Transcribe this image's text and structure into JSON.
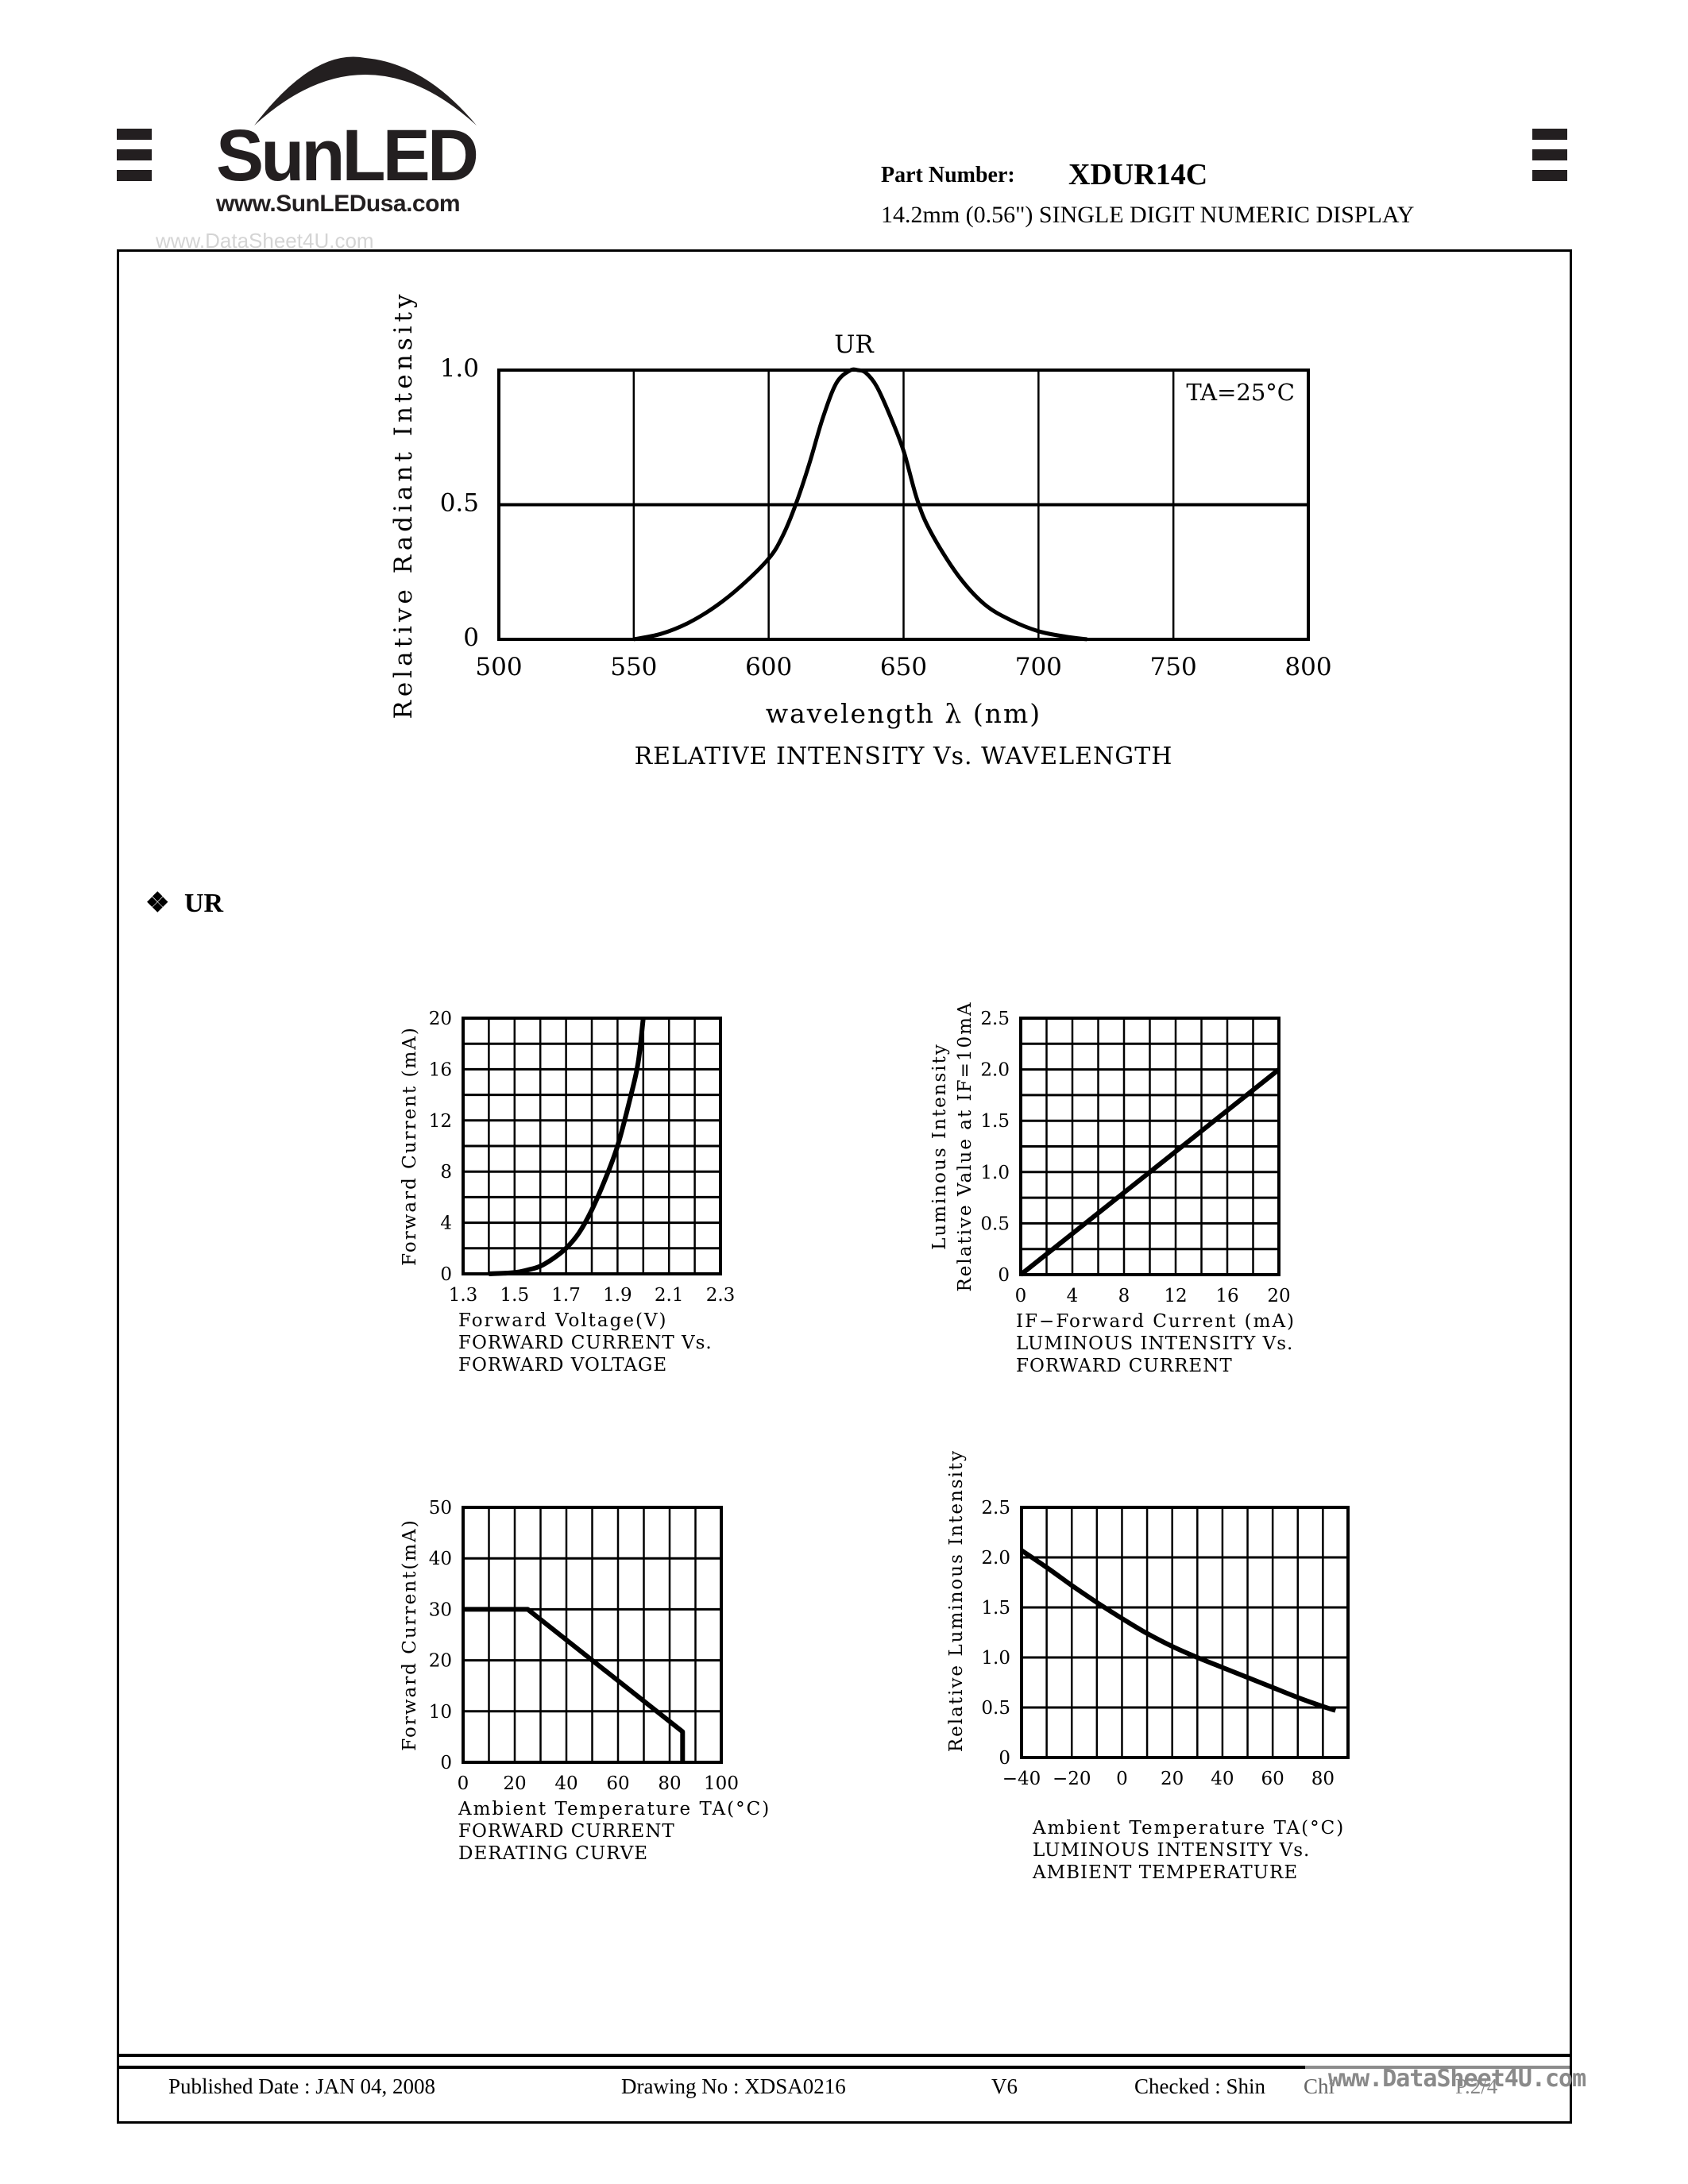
{
  "header": {
    "logo_text": "SunLED",
    "logo_url": "www.SunLEDusa.com",
    "watermark_top": "www.DataSheet4U.com",
    "part_number_label": "Part Number:",
    "part_number": "XDUR14C",
    "subtitle": "14.2mm (0.56\") SINGLE DIGIT NUMERIC DISPLAY"
  },
  "section": {
    "bullet": "❖",
    "label": "UR"
  },
  "footer": {
    "published": "Published Date : JAN  04, 2008",
    "drawing": "Drawing No : XDSA0216",
    "version": "V6",
    "checked": "Checked : Shin",
    "checked_suffix": "Chi",
    "page": "P.2/4",
    "watermark_bottom": "www.DataSheet4U.com"
  },
  "chart_data": [
    {
      "id": "spectrum",
      "type": "line",
      "title": "RELATIVE  INTENSITY  Vs.  WAVELENGTH",
      "series_label": "UR",
      "annotation": "TA=25°C",
      "xlabel": "wavelength λ  (nm)",
      "ylabel": "Relative  Radiant  Intensity",
      "xlim": [
        500,
        800
      ],
      "ylim": [
        0,
        1.0
      ],
      "xticks": [
        "500",
        "550",
        "600",
        "650",
        "700",
        "750",
        "800"
      ],
      "yticks": [
        "0",
        "0.5",
        "1.0"
      ],
      "grid": true,
      "x": [
        550,
        560,
        570,
        580,
        590,
        600,
        605,
        610,
        615,
        620,
        625,
        630,
        633,
        636,
        640,
        645,
        650,
        655,
        660,
        670,
        680,
        690,
        700,
        710,
        718
      ],
      "y": [
        0.0,
        0.02,
        0.06,
        0.12,
        0.2,
        0.3,
        0.38,
        0.5,
        0.65,
        0.82,
        0.95,
        0.998,
        1.0,
        0.99,
        0.94,
        0.83,
        0.7,
        0.52,
        0.4,
        0.24,
        0.13,
        0.07,
        0.03,
        0.01,
        0.0
      ]
    },
    {
      "id": "iv",
      "type": "line",
      "title": "FORWARD  CURRENT  Vs.\nFORWARD  VOLTAGE",
      "xlabel": "Forward  Voltage(V)",
      "ylabel": "Forward  Current  (mA)",
      "xlim": [
        1.3,
        2.3
      ],
      "ylim": [
        0,
        20
      ],
      "xticks": [
        "1.3",
        "1.5",
        "1.7",
        "1.9",
        "2.1",
        "2.3"
      ],
      "yticks": [
        "0",
        "4",
        "8",
        "12",
        "16",
        "20"
      ],
      "grid": true,
      "x": [
        1.4,
        1.5,
        1.55,
        1.6,
        1.65,
        1.7,
        1.75,
        1.8,
        1.85,
        1.9,
        1.95,
        1.98,
        2.0
      ],
      "y": [
        0.0,
        0.1,
        0.3,
        0.6,
        1.2,
        2.0,
        3.2,
        5.0,
        7.3,
        10.0,
        13.8,
        16.5,
        20.0
      ]
    },
    {
      "id": "li",
      "type": "line",
      "title": "LUMINOUS  INTENSITY  Vs.\nFORWARD  CURRENT",
      "xlabel": "IF−Forward  Current  (mA)",
      "ylabel": "Luminous  Intensity\nRelative  Value  at  IF=10mA",
      "xlim": [
        0,
        20
      ],
      "ylim": [
        0,
        2.5
      ],
      "xticks": [
        "0",
        "4",
        "8",
        "12",
        "16",
        "20"
      ],
      "yticks": [
        "0",
        "0.5",
        "1.0",
        "1.5",
        "2.0",
        "2.5"
      ],
      "grid": true,
      "x": [
        0,
        20
      ],
      "y": [
        0,
        2.0
      ]
    },
    {
      "id": "derating",
      "type": "line",
      "title": "FORWARD  CURRENT\nDERATING  CURVE",
      "xlabel": "Ambient  Temperature  TA(°C)",
      "ylabel": "Forward  Current(mA)",
      "xlim": [
        0,
        100
      ],
      "ylim": [
        0,
        50
      ],
      "xticks": [
        "0",
        "20",
        "40",
        "60",
        "80",
        "100"
      ],
      "yticks": [
        "0",
        "10",
        "20",
        "30",
        "40",
        "50"
      ],
      "grid": true,
      "x": [
        0,
        25,
        85,
        85
      ],
      "y": [
        30,
        30,
        6,
        0
      ]
    },
    {
      "id": "lt",
      "type": "line",
      "title": "LUMINOUS  INTENSITY  Vs.\nAMBIENT  TEMPERATURE",
      "xlabel": "Ambient  Temperature  TA(°C)",
      "ylabel": "Relative  Luminous  Intensity",
      "xlim": [
        -40,
        90
      ],
      "ylim": [
        0,
        2.5
      ],
      "xticks": [
        "−40",
        "−20",
        "0",
        "20",
        "40",
        "60",
        "80"
      ],
      "yticks": [
        "0",
        "0.5",
        "1.0",
        "1.5",
        "2.0",
        "2.5"
      ],
      "grid": true,
      "x": [
        -40,
        -30,
        -20,
        -10,
        0,
        10,
        20,
        30,
        40,
        50,
        60,
        70,
        80,
        85
      ],
      "y": [
        2.07,
        1.9,
        1.72,
        1.55,
        1.39,
        1.24,
        1.11,
        1.0,
        0.9,
        0.8,
        0.7,
        0.6,
        0.51,
        0.47
      ]
    }
  ]
}
